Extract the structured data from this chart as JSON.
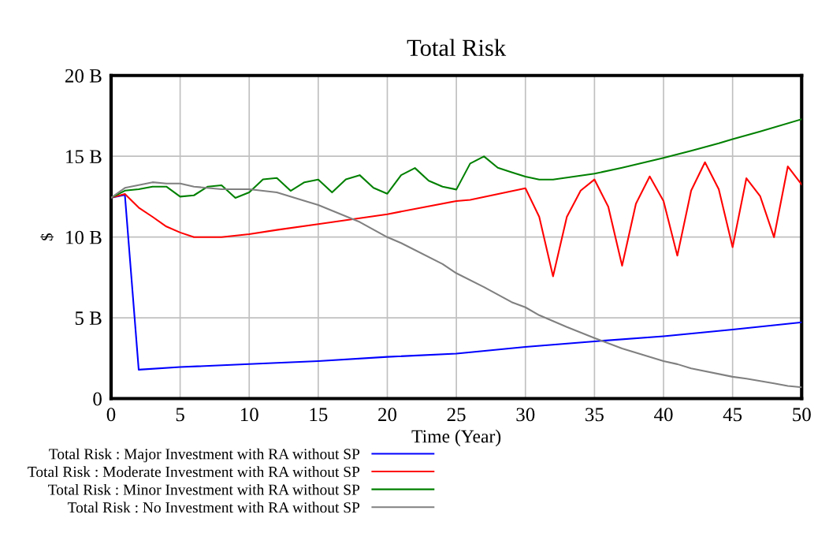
{
  "chart_data": {
    "type": "line",
    "title": "Total Risk",
    "xlabel": "Time (Year)",
    "ylabel": "$",
    "xlim": [
      0,
      50
    ],
    "xticks": [
      0,
      5,
      10,
      15,
      20,
      25,
      30,
      35,
      40,
      45,
      50
    ],
    "ylim": [
      0,
      20
    ],
    "yticks": [
      {
        "value": 0,
        "label": "0"
      },
      {
        "value": 5,
        "label": "5 B"
      },
      {
        "value": 10,
        "label": "10 B"
      },
      {
        "value": 15,
        "label": "15 B"
      },
      {
        "value": 20,
        "label": "20 B"
      }
    ],
    "grid": true,
    "legend": "bottom",
    "line_style": "solid",
    "series": [
      {
        "name": "Total Risk : Major Investment with RA without SP",
        "color": "#0000ff",
        "x": [
          0,
          1,
          2,
          5,
          10,
          15,
          20,
          25,
          30,
          35,
          40,
          45,
          50
        ],
        "values": [
          12.43,
          12.6,
          1.79,
          1.95,
          2.14,
          2.32,
          2.58,
          2.78,
          3.2,
          3.54,
          3.86,
          4.27,
          4.72
        ]
      },
      {
        "name": "Total Risk : Moderate Investment with RA without SP",
        "color": "#ff0000",
        "x": [
          0,
          1,
          2,
          3,
          4,
          5,
          6,
          7,
          8,
          10,
          12,
          15,
          20,
          25,
          26,
          30,
          31,
          32,
          33,
          34,
          35,
          36,
          37,
          38,
          39,
          40,
          41,
          42,
          43,
          44,
          45,
          46,
          47,
          48,
          49,
          50
        ],
        "values": [
          12.43,
          12.66,
          11.82,
          11.25,
          10.65,
          10.28,
          9.99,
          9.99,
          9.99,
          10.18,
          10.44,
          10.8,
          11.41,
          12.23,
          12.3,
          13.02,
          11.25,
          7.57,
          11.25,
          12.87,
          13.56,
          11.87,
          8.22,
          12.06,
          13.75,
          12.23,
          8.85,
          12.87,
          14.63,
          12.96,
          9.37,
          13.64,
          12.52,
          9.99,
          14.37,
          13.25
        ]
      },
      {
        "name": "Total Risk : Minor Investment with RA without SP",
        "color": "#008000",
        "x": [
          0,
          1,
          2,
          3,
          4,
          5,
          6,
          7,
          8,
          9,
          10,
          11,
          12,
          13,
          14,
          15,
          16,
          17,
          18,
          19,
          20,
          21,
          22,
          23,
          24,
          25,
          26,
          27,
          28,
          29,
          30,
          31,
          32,
          35,
          37,
          40,
          42,
          44,
          45,
          47,
          50
        ],
        "values": [
          12.43,
          12.87,
          12.96,
          13.12,
          13.12,
          12.5,
          12.58,
          13.12,
          13.2,
          12.42,
          12.76,
          13.57,
          13.65,
          12.86,
          13.39,
          13.56,
          12.76,
          13.57,
          13.83,
          13.04,
          12.68,
          13.83,
          14.27,
          13.48,
          13.12,
          12.94,
          14.55,
          14.99,
          14.29,
          14.01,
          13.74,
          13.56,
          13.56,
          13.92,
          14.29,
          14.9,
          15.34,
          15.8,
          16.06,
          16.53,
          17.29
        ]
      },
      {
        "name": "Total Risk : No Investment with RA without SP",
        "color": "#808080",
        "x": [
          0,
          1,
          3,
          4,
          5,
          6,
          8,
          10,
          12,
          15,
          18,
          20,
          21,
          24,
          25,
          27,
          29,
          30,
          31,
          33,
          35,
          37,
          40,
          41,
          42,
          45,
          46,
          48,
          49,
          50
        ],
        "values": [
          12.43,
          13.04,
          13.39,
          13.31,
          13.31,
          13.12,
          12.96,
          12.96,
          12.76,
          11.98,
          10.93,
          9.99,
          9.63,
          8.33,
          7.76,
          6.9,
          5.97,
          5.65,
          5.16,
          4.43,
          3.75,
          3.1,
          2.32,
          2.13,
          1.87,
          1.35,
          1.23,
          0.94,
          0.78,
          0.7
        ]
      }
    ]
  }
}
